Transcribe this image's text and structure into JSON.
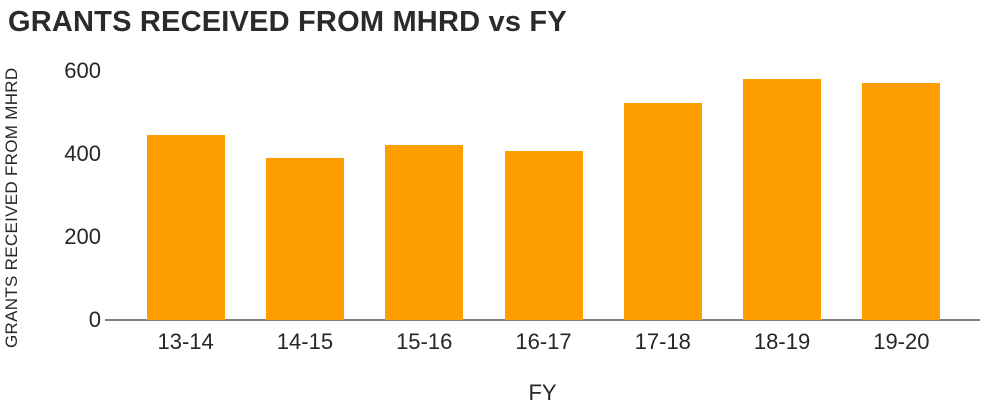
{
  "chart_data": {
    "type": "bar",
    "title": "GRANTS RECEIVED FROM MHRD vs FY",
    "xlabel": "FY",
    "ylabel": "GRANTS RECEIVED FROM MHRD",
    "categories": [
      "13-14",
      "14-15",
      "15-16",
      "16-17",
      "17-18",
      "18-19",
      "19-20"
    ],
    "values": [
      445,
      390,
      422,
      407,
      522,
      580,
      572
    ],
    "ylim": [
      0,
      600
    ],
    "yticks": [
      0,
      200,
      400,
      600
    ],
    "grid": false,
    "legend": false,
    "bar_color": "#FF9E00",
    "axis_color": "#808080",
    "text_color": "#262626",
    "title_color": "#2b2b2b",
    "background_color": "#ffffff"
  }
}
